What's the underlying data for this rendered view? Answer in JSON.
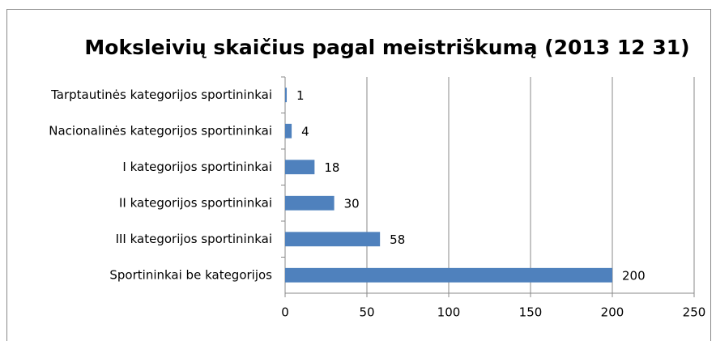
{
  "chart_data": {
    "type": "bar",
    "orientation": "horizontal",
    "title": "Moksleivių skaičius pagal meistriškumą (2013 12 31)",
    "categories": [
      "Tarptautinės kategorijos sportininkai",
      "Nacionalinės kategorijos sportininkai",
      "I kategorijos sportininkai",
      "II kategorijos sportininkai",
      "III kategorijos sportininkai",
      "Sportininkai be kategorijos"
    ],
    "values": [
      1,
      4,
      18,
      30,
      58,
      200
    ],
    "color": "#4f81bd",
    "xlim": [
      0,
      250
    ],
    "xticks": [
      0,
      50,
      100,
      150,
      200,
      250
    ],
    "grid": true
  }
}
